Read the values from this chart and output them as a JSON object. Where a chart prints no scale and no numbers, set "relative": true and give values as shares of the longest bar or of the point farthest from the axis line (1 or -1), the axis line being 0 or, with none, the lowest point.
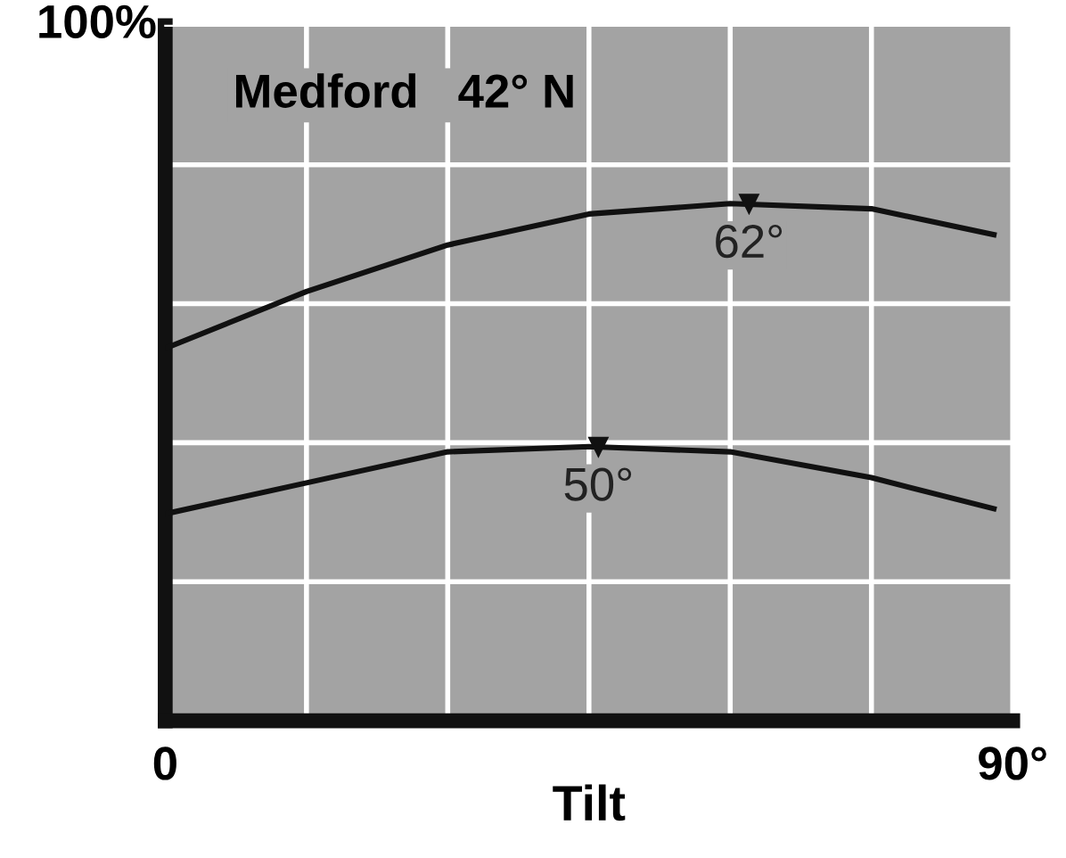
{
  "chart_data": {
    "type": "line",
    "title": "Medford   42° N",
    "xlabel": "Tilt",
    "relative": true,
    "x": [
      0,
      15,
      30,
      45,
      60,
      75,
      88
    ],
    "series": [
      {
        "color": "#111111",
        "values": [
          0.72,
          0.83,
          0.92,
          0.98,
          1,
          0.99,
          0.94
        ]
      },
      {
        "color": "#111111",
        "values": [
          0.4,
          0.46,
          0.52,
          0.53,
          0.52,
          0.47,
          0.41
        ]
      }
    ],
    "xlim": [
      0,
      90
    ],
    "xticks": [
      {
        "value": 0,
        "label": "0"
      },
      {
        "value": 15,
        "label": null
      },
      {
        "value": 30,
        "label": null
      },
      {
        "value": 45,
        "label": null
      },
      {
        "value": 60,
        "label": null
      },
      {
        "value": 75,
        "label": null
      },
      {
        "value": 90,
        "label": "90°"
      }
    ],
    "tick_labels": "x",
    "grid": true,
    "marker": "none",
    "line_style": "solid",
    "annotations": [
      "100%",
      {
        "text": "62°",
        "x": 62,
        "y": 1
      },
      {
        "text": "50°",
        "x": 46,
        "y": 0.53
      }
    ]
  }
}
